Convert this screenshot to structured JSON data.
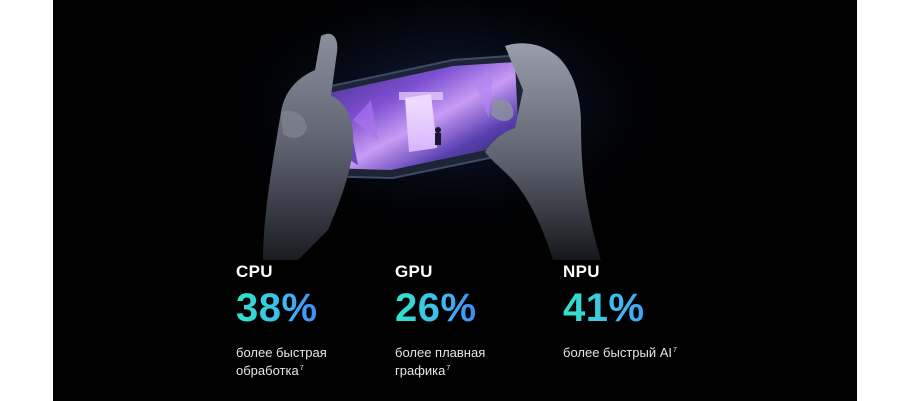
{
  "stats": [
    {
      "label": "CPU",
      "value": "38%",
      "description_line1": "более быстрая",
      "description_line2": "обработка",
      "footnote": "7"
    },
    {
      "label": "GPU",
      "value": "26%",
      "description_line1": "более плавная",
      "description_line2": "графика",
      "footnote": "7"
    },
    {
      "label": "NPU",
      "value": "41%",
      "description_line1": "более быстрый AI",
      "description_line2": "",
      "footnote": "7"
    }
  ],
  "colors": {
    "background": "#000000",
    "page": "#ffffff",
    "gradient_start": "#2ee6c9",
    "gradient_end": "#3d7df5",
    "text": "#ffffff"
  }
}
